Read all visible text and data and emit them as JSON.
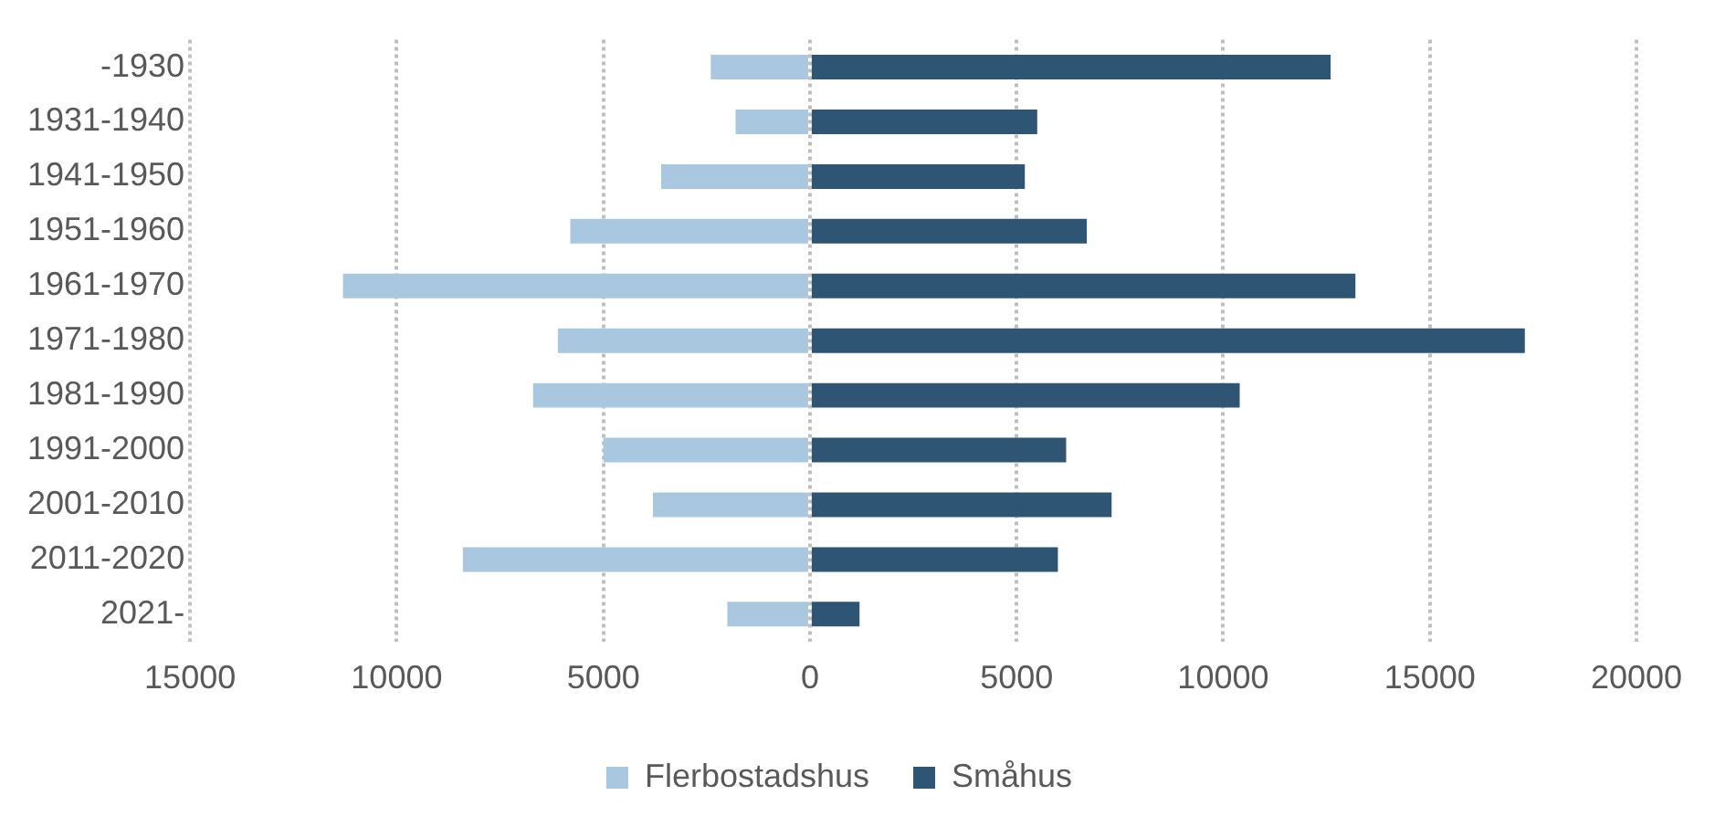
{
  "chart_data": {
    "type": "bar",
    "orientation": "horizontal",
    "stacked": true,
    "categories": [
      "-1930",
      "1931-1940",
      "1941-1950",
      "1951-1960",
      "1961-1970",
      "1971-1980",
      "1981-1990",
      "1991-2000",
      "2001-2010",
      "2011-2020",
      "2021-"
    ],
    "series": [
      {
        "name": "Flerbostadshus",
        "color": "#a9c7de",
        "values": [
          -2400,
          -1800,
          -3600,
          -5800,
          -11300,
          -6100,
          -6700,
          -5000,
          -3800,
          -8400,
          -2000
        ]
      },
      {
        "name": "Småhus",
        "color": "#2e5573",
        "values": [
          12600,
          5500,
          5200,
          6700,
          13200,
          17300,
          10400,
          6200,
          7300,
          6000,
          1200
        ]
      }
    ],
    "xlim": [
      -15000,
      20000
    ],
    "xticks": [
      {
        "value": -15000,
        "label": "15000"
      },
      {
        "value": -10000,
        "label": "10000"
      },
      {
        "value": -5000,
        "label": "5000"
      },
      0,
      5000,
      10000,
      15000,
      20000
    ],
    "grid": "x",
    "legend": "bottom"
  }
}
